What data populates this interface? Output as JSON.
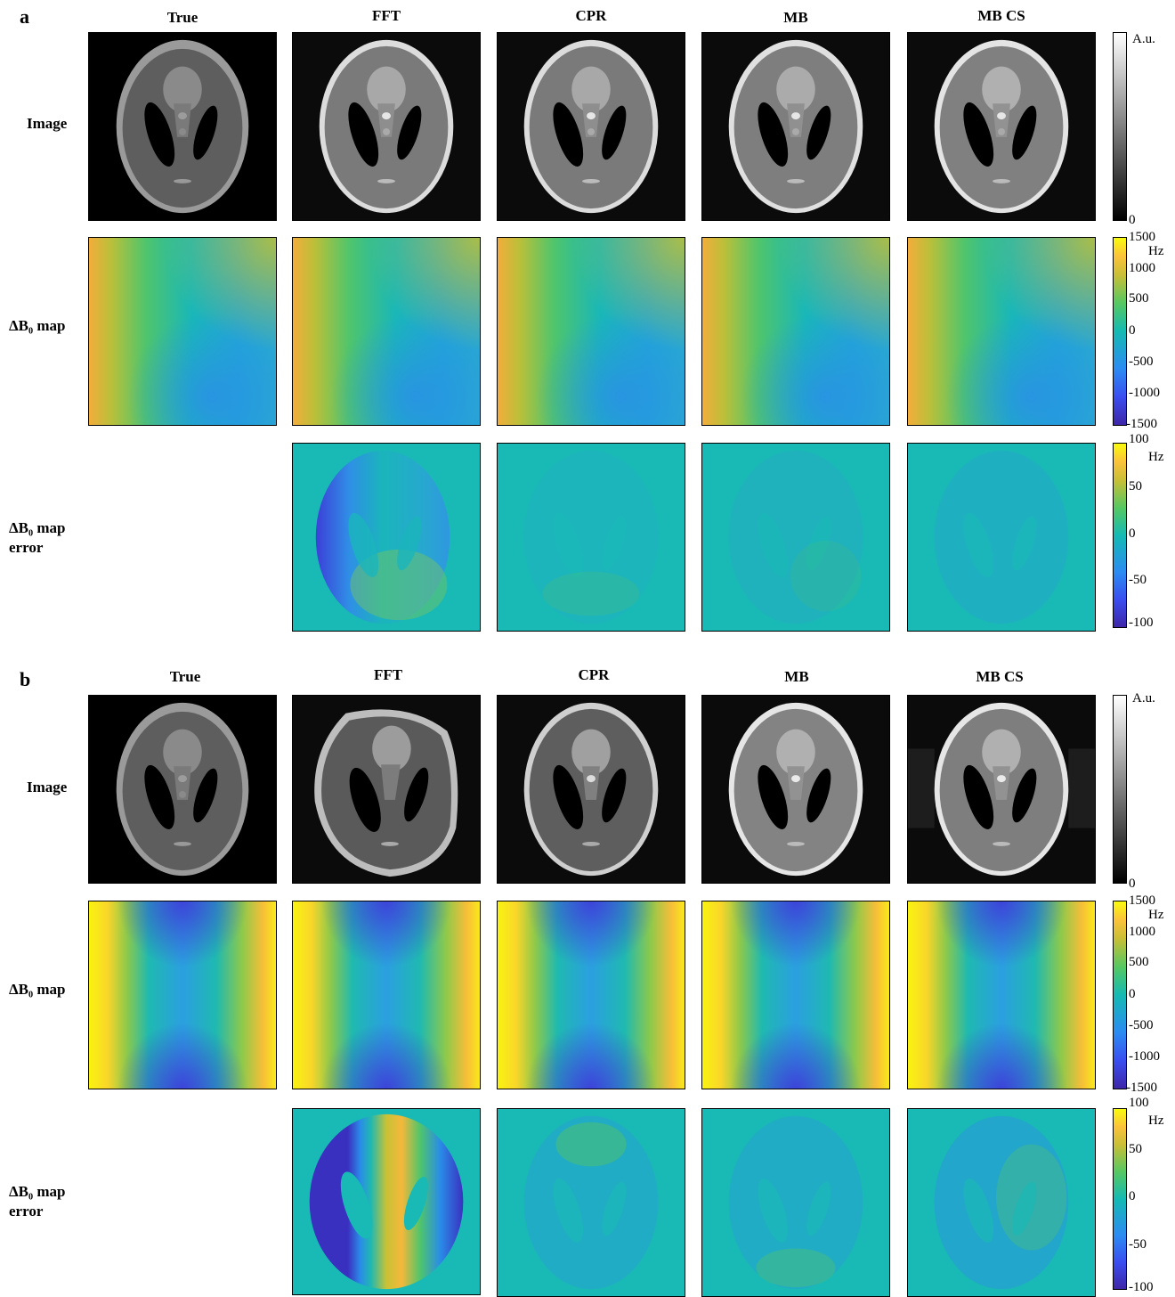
{
  "panels": [
    {
      "letter": "a",
      "columns": [
        "True",
        "FFT",
        "CPR",
        "MB",
        "MB CS"
      ],
      "rows": [
        "Image",
        "ΔB₀ map",
        "ΔB₀ map\nerror"
      ],
      "image_colorbar": {
        "unit": "A.u.",
        "ticks": [
          "0"
        ]
      },
      "field_colorbar": {
        "unit": "Hz",
        "ticks": [
          "1500",
          "1000",
          "500",
          "0",
          "-500",
          "-1000",
          "-1500"
        ]
      },
      "error_colorbar": {
        "unit": "Hz",
        "ticks": [
          "100",
          "50",
          "0",
          "-50",
          "-100"
        ]
      }
    },
    {
      "letter": "b",
      "columns": [
        "True",
        "FFT",
        "CPR",
        "MB",
        "MB CS"
      ],
      "rows": [
        "Image",
        "ΔB₀ map",
        "ΔB₀ map\nerror"
      ],
      "image_colorbar": {
        "unit": "A.u.",
        "ticks": [
          "0"
        ]
      },
      "field_colorbar": {
        "unit": "Hz",
        "ticks": [
          "1500",
          "1000",
          "500",
          "0",
          "-500",
          "-1000",
          "-1500"
        ]
      },
      "error_colorbar": {
        "unit": "Hz",
        "ticks": [
          "100",
          "50",
          "0",
          "-50",
          "-100"
        ]
      }
    }
  ],
  "colors": {
    "parula_low": "#3e26a8",
    "parula_mid": "#19b8ad",
    "parula_high": "#f9fb0e"
  }
}
